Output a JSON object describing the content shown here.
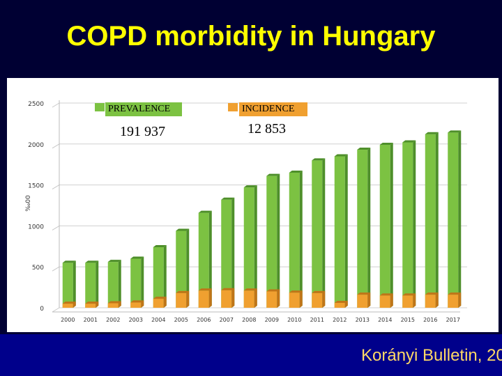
{
  "slide": {
    "title": "COPD morbidity in Hungary",
    "source": "Korányi Bulletin, 20"
  },
  "colors": {
    "background": "#000033",
    "title": "#ffff00",
    "prevalence": "#7cc242",
    "incidence": "#f0a030",
    "footer": "#00008b"
  },
  "legend": {
    "prevalence_label": "PREVALENCE",
    "prevalence_value": "191 937",
    "incidence_label": "INCIDENCE",
    "incidence_value": "12 853"
  },
  "chart_data": {
    "type": "bar",
    "title": "",
    "xlabel": "",
    "ylabel": "‰00",
    "ylim": [
      0,
      2500
    ],
    "yticks": [
      0,
      500,
      1000,
      1500,
      2000,
      2500
    ],
    "grid": true,
    "categories": [
      "2000",
      "2001",
      "2002",
      "2003",
      "2004",
      "2005",
      "2006",
      "2007",
      "2008",
      "2009",
      "2010",
      "2011",
      "2012",
      "2013",
      "2014",
      "2015",
      "2016",
      "2017"
    ],
    "series": [
      {
        "name": "PREVALENCE",
        "values": [
          550,
          550,
          560,
          600,
          740,
          940,
          1160,
          1320,
          1470,
          1610,
          1650,
          1800,
          1850,
          1930,
          1990,
          2020,
          2120,
          2140
        ]
      },
      {
        "name": "INCIDENCE",
        "values": [
          50,
          50,
          55,
          65,
          110,
          180,
          210,
          215,
          210,
          200,
          185,
          180,
          60,
          160,
          150,
          150,
          160,
          160
        ]
      }
    ]
  }
}
